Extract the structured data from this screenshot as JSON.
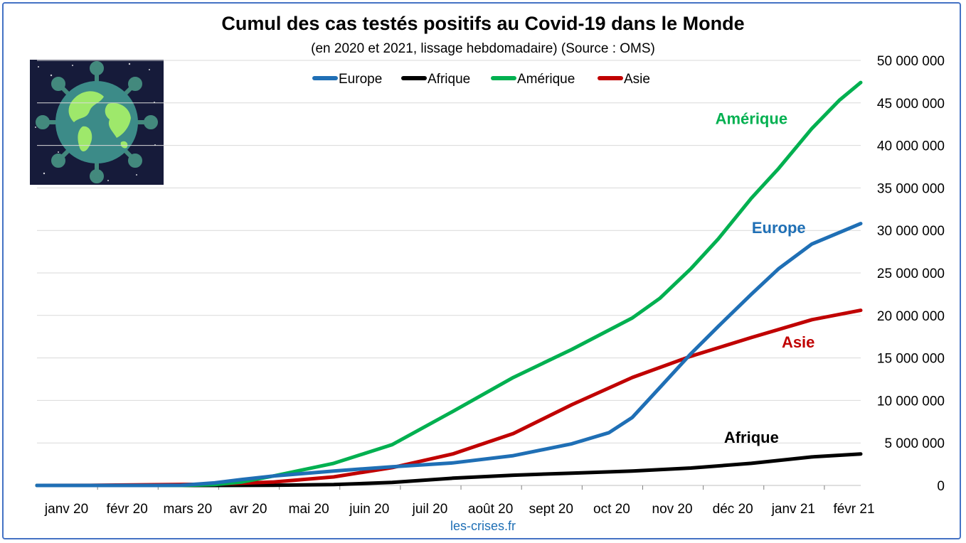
{
  "header": {
    "title": "Cumul des cas testés positifs au Covid-19 dans le Monde",
    "subtitle": "(en 2020 et 2021, lissage hebdomadaire) (Source : OMS)"
  },
  "credit": {
    "text": "les-crises.fr",
    "color": "#1f6fb5"
  },
  "image": {
    "icon": "coronavirus-globe-icon"
  },
  "chart_data": {
    "type": "line",
    "title": "Cumul des cas testés positifs au Covid-19 dans le Monde",
    "subtitle": "(en 2020 et 2021, lissage hebdomadaire) (Source : OMS)",
    "x_ticks": [
      "janv 20",
      "févr 20",
      "mars 20",
      "avr 20",
      "mai 20",
      "juin 20",
      "juil 20",
      "août 20",
      "sept 20",
      "oct 20",
      "nov 20",
      "déc 20",
      "janv 21",
      "févr 21"
    ],
    "y_ticks": [
      "0",
      "5 000 000",
      "10 000 000",
      "15 000 000",
      "20 000 000",
      "25 000 000",
      "30 000 000",
      "35 000 000",
      "40 000 000",
      "45 000 000",
      "50 000 000"
    ],
    "ylim": [
      0,
      50000000
    ],
    "x_range": [
      "2020-01-01",
      "2021-02-26"
    ],
    "y_axis_side": "right",
    "grid": true,
    "legend_position": "top-center",
    "series": [
      {
        "name": "Europe",
        "color": "#1f6fb5",
        "points": [
          [
            "2020-01-01",
            0
          ],
          [
            "2020-03-01",
            0
          ],
          [
            "2020-03-15",
            20000
          ],
          [
            "2020-04-01",
            300000
          ],
          [
            "2020-04-15",
            700000
          ],
          [
            "2020-05-01",
            1100000
          ],
          [
            "2020-06-01",
            1700000
          ],
          [
            "2020-07-01",
            2200000
          ],
          [
            "2020-08-01",
            2650000
          ],
          [
            "2020-09-01",
            3500000
          ],
          [
            "2020-10-01",
            4900000
          ],
          [
            "2020-10-20",
            6200000
          ],
          [
            "2020-11-01",
            8000000
          ],
          [
            "2020-11-15",
            11500000
          ],
          [
            "2020-12-01",
            15500000
          ],
          [
            "2020-12-15",
            18700000
          ],
          [
            "2021-01-01",
            22500000
          ],
          [
            "2021-01-15",
            25500000
          ],
          [
            "2021-02-01",
            28400000
          ],
          [
            "2021-02-26",
            30800000
          ]
        ]
      },
      {
        "name": "Afrique",
        "color": "#000000",
        "points": [
          [
            "2020-01-01",
            0
          ],
          [
            "2020-04-01",
            0
          ],
          [
            "2020-05-01",
            20000
          ],
          [
            "2020-06-01",
            100000
          ],
          [
            "2020-07-01",
            350000
          ],
          [
            "2020-08-01",
            850000
          ],
          [
            "2020-09-01",
            1200000
          ],
          [
            "2020-10-01",
            1450000
          ],
          [
            "2020-11-01",
            1700000
          ],
          [
            "2020-12-01",
            2050000
          ],
          [
            "2021-01-01",
            2600000
          ],
          [
            "2021-02-01",
            3350000
          ],
          [
            "2021-02-26",
            3700000
          ]
        ]
      },
      {
        "name": "Amérique",
        "color": "#00b050",
        "points": [
          [
            "2020-01-01",
            0
          ],
          [
            "2020-03-15",
            0
          ],
          [
            "2020-04-01",
            100000
          ],
          [
            "2020-04-15",
            400000
          ],
          [
            "2020-05-01",
            1100000
          ],
          [
            "2020-06-01",
            2600000
          ],
          [
            "2020-07-01",
            4800000
          ],
          [
            "2020-08-01",
            8700000
          ],
          [
            "2020-09-01",
            12700000
          ],
          [
            "2020-10-01",
            16000000
          ],
          [
            "2020-11-01",
            19700000
          ],
          [
            "2020-11-15",
            22000000
          ],
          [
            "2020-12-01",
            25500000
          ],
          [
            "2020-12-15",
            29000000
          ],
          [
            "2021-01-01",
            33800000
          ],
          [
            "2021-01-15",
            37300000
          ],
          [
            "2021-02-01",
            42000000
          ],
          [
            "2021-02-15",
            45300000
          ],
          [
            "2021-02-26",
            47400000
          ]
        ]
      },
      {
        "name": "Asie",
        "color": "#c00000",
        "points": [
          [
            "2020-01-01",
            0
          ],
          [
            "2020-02-01",
            20000
          ],
          [
            "2020-03-01",
            80000
          ],
          [
            "2020-04-01",
            150000
          ],
          [
            "2020-05-01",
            400000
          ],
          [
            "2020-06-01",
            1000000
          ],
          [
            "2020-07-01",
            2100000
          ],
          [
            "2020-08-01",
            3700000
          ],
          [
            "2020-09-01",
            6100000
          ],
          [
            "2020-10-01",
            9500000
          ],
          [
            "2020-11-01",
            12700000
          ],
          [
            "2020-12-01",
            15200000
          ],
          [
            "2021-01-01",
            17400000
          ],
          [
            "2021-02-01",
            19500000
          ],
          [
            "2021-02-26",
            20600000
          ]
        ]
      }
    ],
    "annotations": [
      {
        "text": "Amérique",
        "color": "#00b050",
        "x": "2021-01-01",
        "y": 42500000
      },
      {
        "text": "Europe",
        "color": "#1f6fb5",
        "x": "2021-01-15",
        "y": 29700000
      },
      {
        "text": "Asie",
        "color": "#c00000",
        "x": "2021-01-25",
        "y": 16200000
      },
      {
        "text": "Afrique",
        "color": "#000000",
        "x": "2021-01-01",
        "y": 5000000
      }
    ]
  }
}
